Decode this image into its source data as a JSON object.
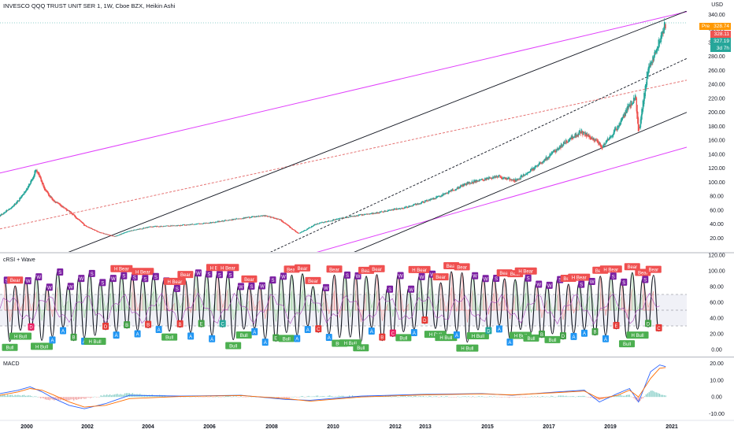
{
  "header": {
    "title": "INVESCO QQQ TRUST UNIT SER 1, 1W, Cboe BZX, Heikin Ashi",
    "currency": "USD"
  },
  "price_tags": {
    "pre_label": "Pre",
    "pre_value": "328.74",
    "last_value": "328.11",
    "alt_value": "327.19",
    "countdown": "3d 7h"
  },
  "panels": {
    "indicator_title": "cRSI + Wave",
    "macd_title": "MACD"
  },
  "colors": {
    "up": "#26a69a",
    "down": "#ef5350",
    "channel": "#e040fb",
    "trend": "#131722",
    "bear_label": "#f05050",
    "bull_label": "#4caf50",
    "a_label": "#2196f3",
    "wave_label": "#7b1fa2"
  },
  "chart_data": [
    {
      "type": "candlestick",
      "title": "INVESCO QQQ TRUST UNIT SER 1, 1W, Cboe BZX, Heikin Ashi",
      "x_ticks": [
        "2000",
        "2002",
        "2004",
        "2006",
        "2008",
        "2010",
        "2012",
        "2013",
        "2015",
        "2017",
        "2019",
        "2021"
      ],
      "y_ticks": [
        "340.00",
        "320.00",
        "300.00",
        "280.00",
        "260.00",
        "240.00",
        "220.00",
        "200.00",
        "180.00",
        "160.00",
        "140.00",
        "120.00",
        "100.00",
        "80.00",
        "60.00",
        "40.00",
        "20.00"
      ],
      "ylim": [
        0,
        345
      ],
      "price_path": {
        "x": [
          1999.0,
          1999.5,
          1999.9,
          2000.2,
          2000.5,
          2000.8,
          2001.3,
          2001.8,
          2002.3,
          2002.8,
          2003.3,
          2004.0,
          2005.0,
          2006.0,
          2007.0,
          2007.8,
          2008.3,
          2008.9,
          2009.5,
          2010.5,
          2011.5,
          2012.5,
          2013.5,
          2014.5,
          2015.5,
          2016.1,
          2016.8,
          2017.8,
          2018.3,
          2018.8,
          2019.0,
          2019.5,
          2019.9,
          2020.1,
          2020.2,
          2020.5,
          2020.8,
          2021.1
        ],
        "y": [
          52,
          68,
          90,
          118,
          88,
          72,
          58,
          38,
          28,
          22,
          30,
          36,
          38,
          42,
          48,
          52,
          46,
          26,
          40,
          50,
          56,
          64,
          78,
          98,
          108,
          102,
          122,
          158,
          172,
          158,
          150,
          178,
          210,
          222,
          168,
          260,
          290,
          328
        ]
      },
      "lines": [
        {
          "name": "",
          "style": "solid",
          "color": "#e040fb",
          "from": [
            1999.0,
            113
          ],
          "to": [
            2021.8,
            344
          ]
        },
        {
          "name": "",
          "style": "solid",
          "color": "#e040fb",
          "from": [
            2004.5,
            -62
          ],
          "to": [
            2021.8,
            150
          ]
        },
        {
          "name": "",
          "style": "dashed",
          "color": "#e57373",
          "from": [
            1999.0,
            33
          ],
          "to": [
            2021.8,
            246
          ]
        },
        {
          "name": "",
          "style": "solid",
          "color": "#131722",
          "from": [
            2001.0,
            -5
          ],
          "to": [
            2021.8,
            345
          ]
        },
        {
          "name": "",
          "style": "dashed",
          "color": "#131722",
          "from": [
            2007.5,
            -10
          ],
          "to": [
            2021.8,
            277
          ]
        },
        {
          "name": "",
          "style": "solid",
          "color": "#131722",
          "from": [
            2010.5,
            -5
          ],
          "to": [
            2021.8,
            200
          ]
        }
      ]
    },
    {
      "type": "line",
      "title": "cRSI + Wave",
      "y_ticks": [
        "120.00",
        "100.00",
        "80.00",
        "60.00",
        "40.00",
        "20.00",
        "0.00"
      ],
      "ylim": [
        -8,
        122
      ],
      "bands": {
        "upper": 70,
        "mid": 50,
        "lower": 30
      },
      "labels": [
        "Bear",
        "Bull",
        "H Bear",
        "H Bull",
        "A",
        "B",
        "C",
        "D",
        "E",
        "S",
        "W"
      ]
    },
    {
      "type": "line",
      "title": "MACD",
      "y_ticks": [
        "20.00",
        "10.00",
        "0.00",
        "-10.00"
      ],
      "ylim": [
        -13,
        23
      ],
      "series": [
        {
          "x": [
            1999.0,
            1999.6,
            2000.0,
            2000.4,
            2000.8,
            2001.3,
            2001.8,
            2002.5,
            2003.3,
            2005.0,
            2007.0,
            2008.5,
            2009.3,
            2011.0,
            2013.0,
            2015.0,
            2016.0,
            2017.5,
            2018.4,
            2018.9,
            2019.5,
            2019.9,
            2020.2,
            2020.6,
            2020.9,
            2021.1
          ],
          "values": [
            2,
            4,
            6,
            3,
            -1,
            -5,
            -7,
            -4,
            1,
            0.5,
            1,
            -1.5,
            -2,
            0.5,
            1.5,
            2,
            1,
            3,
            4,
            -3,
            2,
            5,
            -3,
            15,
            19,
            18
          ]
        },
        {
          "x": [
            1999.0,
            1999.6,
            2000.0,
            2000.4,
            2000.8,
            2001.3,
            2001.8,
            2002.5,
            2003.3,
            2005.0,
            2007.0,
            2008.5,
            2009.3,
            2011.0,
            2013.0,
            2015.0,
            2016.0,
            2017.5,
            2018.4,
            2018.9,
            2019.5,
            2019.9,
            2020.2,
            2020.6,
            2020.9,
            2021.1
          ],
          "values": [
            1,
            3,
            5,
            4,
            1,
            -3,
            -6,
            -5,
            -1,
            0.3,
            0.8,
            -1,
            -2.5,
            0,
            1.2,
            1.8,
            1.2,
            2.6,
            3.5,
            -1,
            1,
            4,
            0,
            11,
            17,
            17.5
          ]
        }
      ]
    }
  ]
}
